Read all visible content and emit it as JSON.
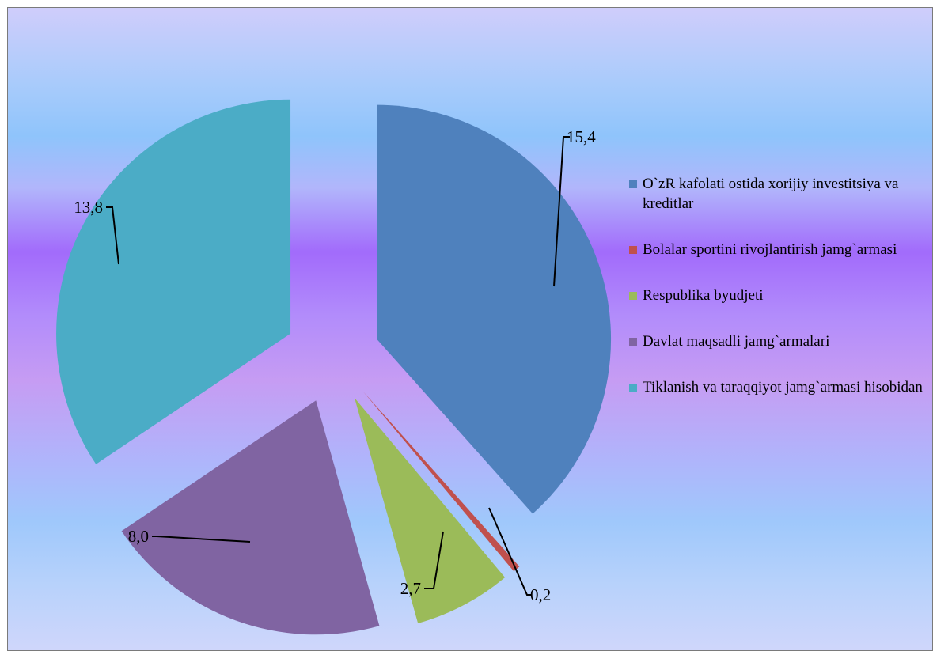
{
  "chart_data": {
    "type": "pie",
    "exploded": true,
    "legend_position": "right",
    "slices": [
      {
        "label": "O`zR kafolati ostida xorijiy investitsiya va kreditlar",
        "value": 15.4,
        "display": "15,4",
        "color": "#4f81bd"
      },
      {
        "label": "Bolalar sportini rivojlantirish jamg`armasi",
        "value": 0.2,
        "display": "0,2",
        "color": "#c0504d"
      },
      {
        "label": "Respublika byudjeti",
        "value": 2.7,
        "display": "2,7",
        "color": "#9bbb59"
      },
      {
        "label": "Davlat maqsadli jamg`armalari",
        "value": 8.0,
        "display": "8,0",
        "color": "#8064a2"
      },
      {
        "label": "Tiklanish va taraqqiyot jamg`armasi hisobidan",
        "value": 13.8,
        "display": "13,8",
        "color": "#4bacc6"
      }
    ]
  }
}
